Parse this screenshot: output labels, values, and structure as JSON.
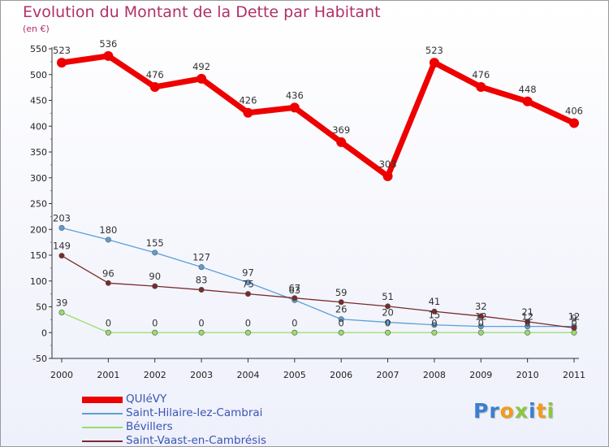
{
  "header": {
    "title": "Evolution du Montant de la Dette par Habitant",
    "subtitle": "(en €)"
  },
  "logo": {
    "letters": [
      {
        "ch": "P",
        "color": "#3a7fd0"
      },
      {
        "ch": "r",
        "color": "#3a7fd0"
      },
      {
        "ch": "o",
        "color": "#f29a1a"
      },
      {
        "ch": "x",
        "color": "#8cc63e"
      },
      {
        "ch": "i",
        "color": "#3a7fd0"
      },
      {
        "ch": "t",
        "color": "#f29a1a"
      },
      {
        "ch": "i",
        "color": "#8cc63e"
      }
    ]
  },
  "chart_data": {
    "type": "line",
    "x": [
      "2000",
      "2001",
      "2002",
      "2003",
      "2004",
      "2005",
      "2006",
      "2007",
      "2008",
      "2009",
      "2010",
      "2011"
    ],
    "ylim": [
      -50,
      550
    ],
    "yticks": [
      -50,
      0,
      50,
      100,
      150,
      200,
      250,
      300,
      350,
      400,
      450,
      500,
      550
    ],
    "grid": false,
    "legend_position": "bottom-left",
    "series": [
      {
        "name": "QUIéVY",
        "color": "#ee0000",
        "values": [
          523,
          536,
          476,
          492,
          426,
          436,
          369,
          303,
          523,
          476,
          448,
          406
        ],
        "labels": [
          "523",
          "536",
          "476",
          "492",
          "426",
          "436",
          "369",
          "303",
          "523",
          "476",
          "448",
          "406"
        ]
      },
      {
        "name": "Saint-Hilaire-lez-Cambrai",
        "color": "#5b9fd6",
        "values": [
          203,
          180,
          155,
          127,
          97,
          63,
          26,
          20,
          15,
          12,
          12,
          12
        ],
        "labels": [
          "203",
          "180",
          "155",
          "127",
          "97",
          "63",
          "26",
          "20",
          "15",
          "12",
          "12",
          "12"
        ]
      },
      {
        "name": "Bévillers",
        "color": "#98de6a",
        "values": [
          39,
          0,
          0,
          0,
          0,
          0,
          0,
          0,
          0,
          0,
          0,
          0
        ],
        "labels": [
          "39",
          "0",
          "0",
          "0",
          "0",
          "0",
          "0",
          "0",
          "0",
          "0",
          "0",
          "0"
        ]
      },
      {
        "name": "Saint-Vaast-en-Cambrésis",
        "color": "#7a2a2a",
        "values": [
          149,
          96,
          90,
          83,
          75,
          67,
          59,
          51,
          41,
          32,
          21,
          9
        ],
        "labels": [
          "149",
          "96",
          "90",
          "83",
          "75",
          "67",
          "59",
          "51",
          "41",
          "32",
          "21",
          "9"
        ]
      }
    ]
  }
}
